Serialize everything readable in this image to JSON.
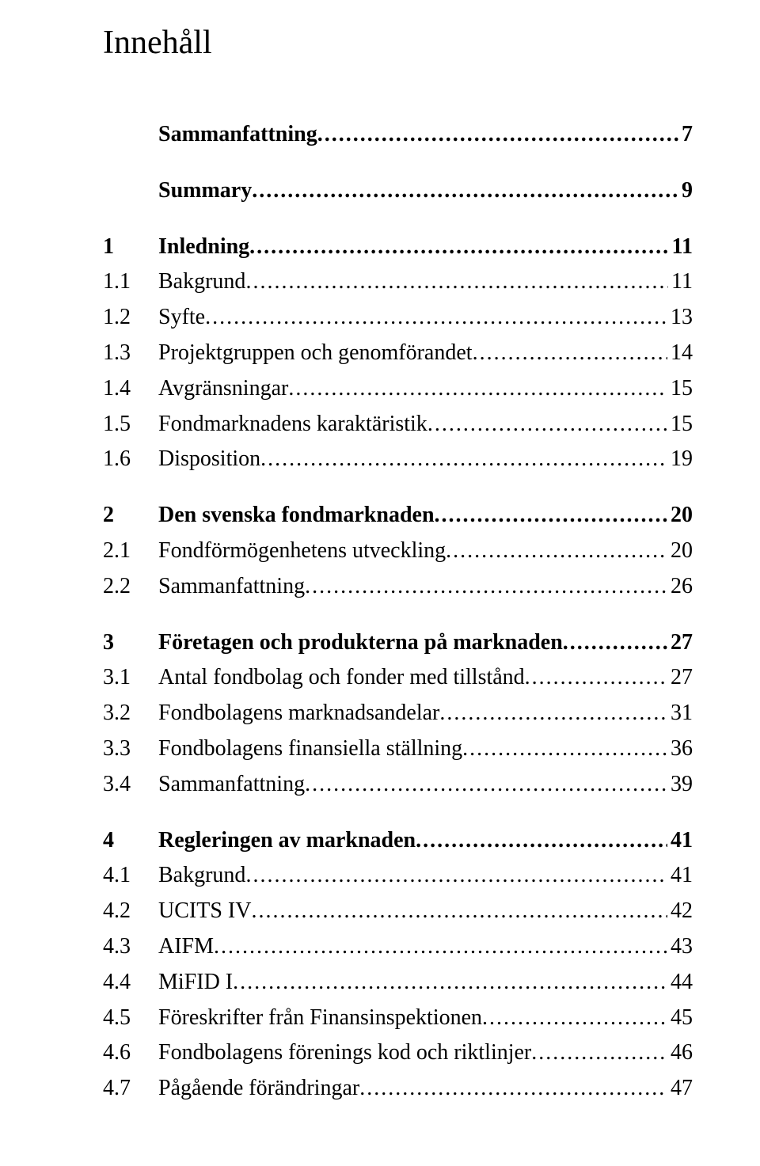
{
  "title": "Innehåll",
  "entries": [
    {
      "kind": "first-head",
      "num": "",
      "label": "Sammanfattning",
      "page": "7"
    },
    {
      "kind": "section-head",
      "num": "",
      "label": "Summary",
      "page": "9"
    },
    {
      "kind": "section-head",
      "num": "1",
      "label": "Inledning",
      "page": "11"
    },
    {
      "kind": "sub",
      "num": "1.1",
      "label": "Bakgrund",
      "page": "11"
    },
    {
      "kind": "sub",
      "num": "1.2",
      "label": "Syfte",
      "page": "13"
    },
    {
      "kind": "sub",
      "num": "1.3",
      "label": "Projektgruppen och genomförandet",
      "page": "14"
    },
    {
      "kind": "sub",
      "num": "1.4",
      "label": "Avgränsningar",
      "page": "15"
    },
    {
      "kind": "sub",
      "num": "1.5",
      "label": "Fondmarknadens karaktäristik",
      "page": "15"
    },
    {
      "kind": "sub",
      "num": "1.6",
      "label": "Disposition",
      "page": "19"
    },
    {
      "kind": "section-head",
      "num": "2",
      "label": "Den svenska fondmarknaden",
      "page": "20"
    },
    {
      "kind": "sub",
      "num": "2.1",
      "label": "Fondförmögenhetens utveckling",
      "page": "20"
    },
    {
      "kind": "sub",
      "num": "2.2",
      "label": "Sammanfattning",
      "page": "26"
    },
    {
      "kind": "section-head",
      "num": "3",
      "label": "Företagen och produkterna på marknaden",
      "page": "27"
    },
    {
      "kind": "sub",
      "num": "3.1",
      "label": "Antal fondbolag och fonder med tillstånd",
      "page": "27"
    },
    {
      "kind": "sub",
      "num": "3.2",
      "label": "Fondbolagens marknadsandelar",
      "page": "31"
    },
    {
      "kind": "sub",
      "num": "3.3",
      "label": "Fondbolagens finansiella ställning",
      "page": "36"
    },
    {
      "kind": "sub",
      "num": "3.4",
      "label": "Sammanfattning",
      "page": "39"
    },
    {
      "kind": "section-head",
      "num": "4",
      "label": "Regleringen av marknaden",
      "page": "41"
    },
    {
      "kind": "sub",
      "num": "4.1",
      "label": "Bakgrund",
      "page": "41"
    },
    {
      "kind": "sub",
      "num": "4.2",
      "label": "UCITS IV",
      "page": "42"
    },
    {
      "kind": "sub",
      "num": "4.3",
      "label": "AIFM",
      "page": "43"
    },
    {
      "kind": "sub",
      "num": "4.4",
      "label": "MiFID I",
      "page": "44"
    },
    {
      "kind": "sub",
      "num": "4.5",
      "label": "Föreskrifter från Finansinspektionen",
      "page": "45"
    },
    {
      "kind": "sub",
      "num": "4.6",
      "label": "Fondbolagens förenings kod och riktlinjer",
      "page": "46"
    },
    {
      "kind": "sub",
      "num": "4.7",
      "label": "Pågående förändringar",
      "page": "47"
    }
  ]
}
